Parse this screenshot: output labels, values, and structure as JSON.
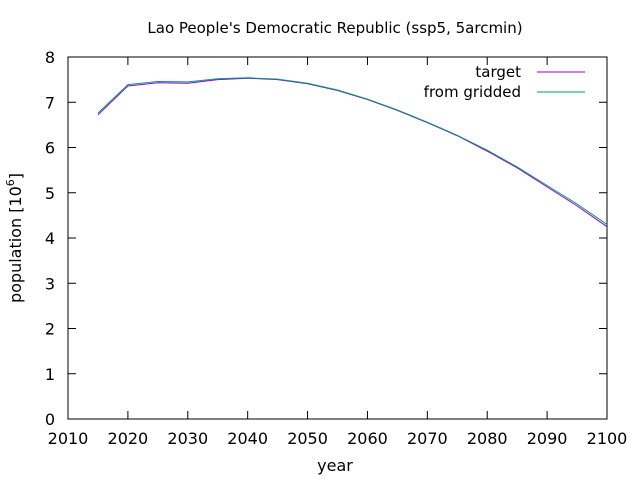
{
  "chart_data": {
    "type": "line",
    "title": "Lao People's Democratic Republic (ssp5, 5arcmin)",
    "xlabel": "year",
    "ylabel_main": "population [10",
    "ylabel_exp": "6",
    "ylabel_close": "]",
    "xlim": [
      2010,
      2100
    ],
    "ylim": [
      0,
      8
    ],
    "xticks": [
      2010,
      2020,
      2030,
      2040,
      2050,
      2060,
      2070,
      2080,
      2090,
      2100
    ],
    "yticks": [
      0,
      1,
      2,
      3,
      4,
      5,
      6,
      7,
      8
    ],
    "grid": false,
    "legend_position": "top-right",
    "series": [
      {
        "name": "target",
        "color": "#9400d3",
        "x": [
          2015,
          2020,
          2025,
          2030,
          2035,
          2040,
          2045,
          2050,
          2055,
          2060,
          2065,
          2070,
          2075,
          2080,
          2085,
          2090,
          2095,
          2100
        ],
        "y": [
          6.72,
          7.36,
          7.43,
          7.42,
          7.5,
          7.53,
          7.5,
          7.41,
          7.26,
          7.06,
          6.82,
          6.55,
          6.26,
          5.92,
          5.55,
          5.13,
          4.71,
          4.25
        ]
      },
      {
        "name": "from gridded",
        "color": "#009e73",
        "x": [
          2015,
          2020,
          2025,
          2030,
          2035,
          2040,
          2045,
          2050,
          2055,
          2060,
          2065,
          2070,
          2075,
          2080,
          2085,
          2090,
          2095,
          2100
        ],
        "y": [
          6.76,
          7.39,
          7.46,
          7.45,
          7.52,
          7.54,
          7.51,
          7.42,
          7.27,
          7.07,
          6.83,
          6.56,
          6.27,
          5.94,
          5.57,
          5.16,
          4.75,
          4.3
        ]
      }
    ]
  }
}
